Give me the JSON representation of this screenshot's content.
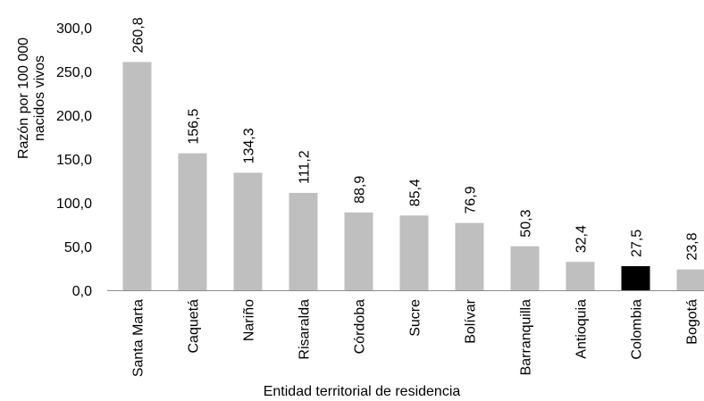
{
  "chart_data": {
    "type": "bar",
    "xlabel": "Entidad territorial de residencia",
    "ylabel_lines": [
      "Razón por 100 000",
      "nacidos vivos"
    ],
    "ylim": [
      0,
      300
    ],
    "yticks": [
      "0,0",
      "50,0",
      "100,0",
      "150,0",
      "200,0",
      "250,0",
      "300,0"
    ],
    "ytick_values": [
      0,
      50,
      100,
      150,
      200,
      250,
      300
    ],
    "categories": [
      "Santa Marta",
      "Caquetá",
      "Nariño",
      "Risaralda",
      "Córdoba",
      "Sucre",
      "Bolívar",
      "Barranquilla",
      "Antioquia",
      "Colombia",
      "Bogotá"
    ],
    "values": [
      260.8,
      156.5,
      134.3,
      111.2,
      88.9,
      85.4,
      76.9,
      50.3,
      32.4,
      27.5,
      23.8
    ],
    "value_labels": [
      "260,8",
      "156,5",
      "134,3",
      "111,2",
      "88,9",
      "85,4",
      "76,9",
      "50,3",
      "32,4",
      "27,5",
      "23,8"
    ],
    "grid": false,
    "legend": "none",
    "colors": {
      "default_bar": "#bfbfbf",
      "highlight_bar": "#000000",
      "highlight_category": "Colombia",
      "axis": "#8c8c8c"
    }
  }
}
